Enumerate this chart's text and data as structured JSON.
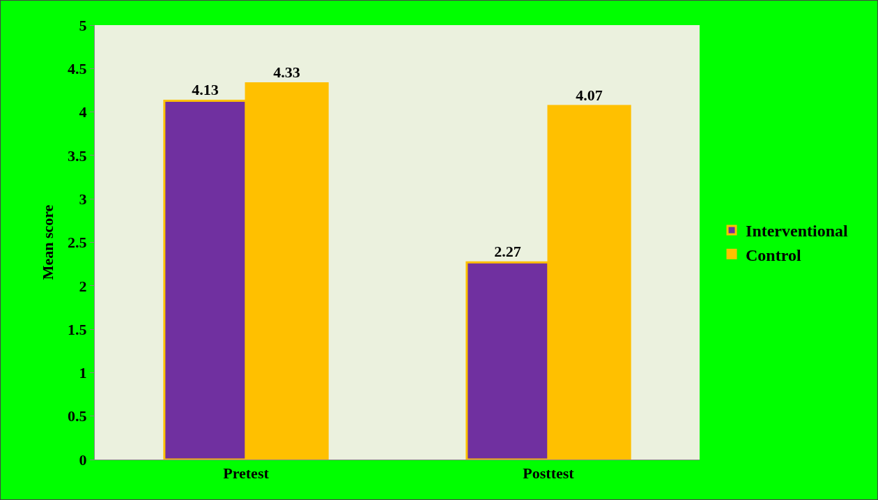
{
  "chart_data": {
    "type": "bar",
    "ylabel": "Mean score",
    "categories": [
      "Pretest",
      "Posttest"
    ],
    "series": [
      {
        "name": "Interventional",
        "color": "#7030a0",
        "values": [
          4.13,
          2.27
        ]
      },
      {
        "name": "Control",
        "color": "#ffc000",
        "values": [
          4.33,
          4.07
        ]
      }
    ],
    "ylim": [
      0,
      5
    ],
    "yticks": [
      0,
      0.5,
      1,
      1.5,
      2,
      2.5,
      3,
      3.5,
      4,
      4.5,
      5
    ],
    "data_labels": true,
    "legend": "right",
    "grid": false
  }
}
